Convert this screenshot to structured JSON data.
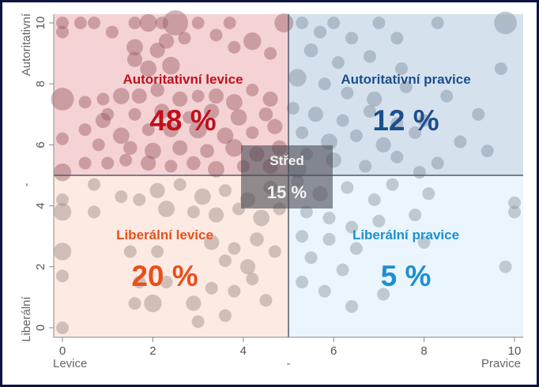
{
  "chart_data": {
    "type": "scatter",
    "subtype": "bubble-quadrant",
    "xlim": [
      0,
      10
    ],
    "ylim": [
      0,
      10
    ],
    "xticks": [
      0,
      2,
      4,
      6,
      8,
      10
    ],
    "yticks": [
      0,
      2,
      4,
      6,
      8,
      10
    ],
    "xlabel_left": "Levice",
    "xlabel_center": "-",
    "xlabel_right": "Pravice",
    "ylabel_bottom": "Liberální",
    "ylabel_center": "-",
    "ylabel_top": "Autoritativní",
    "divider": {
      "x": 5,
      "y": 5
    },
    "quadrants": [
      {
        "name": "Autoritativní levice",
        "percent": "48 %",
        "color": "#c0101a",
        "bg": "#f5d3d5"
      },
      {
        "name": "Autoritativní pravice",
        "percent": "12 %",
        "color": "#1c4e8e",
        "bg": "#d5e2ee"
      },
      {
        "name": "Liberální levice",
        "percent": "20 %",
        "color": "#e8501a",
        "bg": "#fdeae3"
      },
      {
        "name": "Liberální pravice",
        "percent": "5 %",
        "color": "#1d8fd0",
        "bg": "#eaf5fd"
      }
    ],
    "center": {
      "name": "Střed",
      "percent": "15 %"
    },
    "points": [
      [
        0,
        10,
        1
      ],
      [
        0,
        9.7,
        1
      ],
      [
        0.4,
        10,
        1
      ],
      [
        0.7,
        10,
        1
      ],
      [
        1.1,
        9.7,
        1
      ],
      [
        1.6,
        10,
        1
      ],
      [
        1.9,
        10,
        1.4
      ],
      [
        2.2,
        10,
        1
      ],
      [
        1.6,
        9.2,
        1.3
      ],
      [
        2.1,
        9.1,
        1.2
      ],
      [
        2.5,
        10,
        2
      ],
      [
        2.3,
        9.4,
        1.2
      ],
      [
        1.6,
        8.8,
        1.2
      ],
      [
        1.9,
        8.5,
        1.3
      ],
      [
        2.4,
        8.6,
        1.4
      ],
      [
        3.0,
        10,
        1
      ],
      [
        3.4,
        9.6,
        1
      ],
      [
        3.7,
        10,
        1
      ],
      [
        2.7,
        9.5,
        1
      ],
      [
        3.8,
        9.2,
        1
      ],
      [
        4.2,
        9.4,
        1.4
      ],
      [
        4.6,
        9.0,
        1
      ],
      [
        4.9,
        10,
        1.5
      ],
      [
        0,
        7.5,
        1.8
      ],
      [
        0.5,
        7.4,
        1
      ],
      [
        0.9,
        7.5,
        1
      ],
      [
        1.3,
        7.6,
        1.3
      ],
      [
        1.7,
        7.6,
        1.2
      ],
      [
        2.1,
        7.8,
        1.1
      ],
      [
        2.6,
        7.5,
        1.2
      ],
      [
        3.0,
        7.6,
        1
      ],
      [
        3.4,
        7.6,
        1.2
      ],
      [
        3.8,
        7.4,
        1.3
      ],
      [
        4.2,
        7.8,
        1
      ],
      [
        4.6,
        7.5,
        1.2
      ],
      [
        1.0,
        7.0,
        1
      ],
      [
        1.6,
        7.0,
        1
      ],
      [
        2.2,
        7.1,
        1.2
      ],
      [
        2.8,
        6.9,
        1
      ],
      [
        3.3,
        7.1,
        1.2
      ],
      [
        3.9,
        6.9,
        1.3
      ],
      [
        4.5,
        7.0,
        1.1
      ],
      [
        0.9,
        6.8,
        1.2
      ],
      [
        0.5,
        6.5,
        1
      ],
      [
        1.3,
        6.3,
        1.3
      ],
      [
        1.9,
        6.5,
        1
      ],
      [
        2.4,
        6.5,
        1.2
      ],
      [
        3.0,
        6.5,
        1.4
      ],
      [
        3.6,
        6.3,
        1.3
      ],
      [
        4.2,
        6.4,
        1
      ],
      [
        4.7,
        6.6,
        1.2
      ],
      [
        0,
        6.2,
        1
      ],
      [
        0.8,
        6.0,
        1
      ],
      [
        1.5,
        5.9,
        1.1
      ],
      [
        2.0,
        5.8,
        1.3
      ],
      [
        2.6,
        5.9,
        1.2
      ],
      [
        3.2,
        5.8,
        1.1
      ],
      [
        3.8,
        5.9,
        1.4
      ],
      [
        4.3,
        5.7,
        1.2
      ],
      [
        4.8,
        5.9,
        1.2
      ],
      [
        1.0,
        5.4,
        1
      ],
      [
        1.4,
        5.5,
        1
      ],
      [
        1.9,
        5.4,
        1.2
      ],
      [
        2.4,
        5.3,
        1
      ],
      [
        2.9,
        5.4,
        1.1
      ],
      [
        3.4,
        5.2,
        1.3
      ],
      [
        4.0,
        5.3,
        1
      ],
      [
        4.6,
        5.3,
        1.2
      ],
      [
        0,
        5.1,
        1.4
      ],
      [
        0.5,
        5.4,
        1
      ],
      [
        5.3,
        10,
        1
      ],
      [
        5.7,
        9.7,
        1
      ],
      [
        6.0,
        10,
        1
      ],
      [
        6.4,
        9.5,
        1
      ],
      [
        7.0,
        10,
        1
      ],
      [
        7.4,
        9.5,
        1
      ],
      [
        8.3,
        10,
        1
      ],
      [
        9.8,
        10,
        1.8
      ],
      [
        5.5,
        9.1,
        1.1
      ],
      [
        6.1,
        8.7,
        1
      ],
      [
        6.8,
        8.9,
        1
      ],
      [
        7.5,
        8.5,
        1
      ],
      [
        9.7,
        8.5,
        1
      ],
      [
        5.2,
        8.2,
        1.4
      ],
      [
        5.8,
        8.0,
        1
      ],
      [
        6.3,
        7.7,
        1
      ],
      [
        6.9,
        7.5,
        1.2
      ],
      [
        7.6,
        7.9,
        1
      ],
      [
        8.5,
        7.6,
        1
      ],
      [
        5.1,
        7.2,
        1
      ],
      [
        5.6,
        7.0,
        1.2
      ],
      [
        6.2,
        6.8,
        1
      ],
      [
        6.8,
        7.1,
        1
      ],
      [
        7.4,
        6.7,
        1
      ],
      [
        8.0,
        6.8,
        1
      ],
      [
        9.2,
        7.0,
        1
      ],
      [
        5.3,
        6.4,
        1
      ],
      [
        5.9,
        6.1,
        1.3
      ],
      [
        6.5,
        6.3,
        1
      ],
      [
        7.1,
        6.0,
        1.2
      ],
      [
        7.8,
        6.4,
        1
      ],
      [
        8.8,
        6.1,
        1
      ],
      [
        5.4,
        5.7,
        1
      ],
      [
        6.0,
        5.5,
        1.2
      ],
      [
        6.7,
        5.3,
        1
      ],
      [
        7.4,
        5.6,
        1
      ],
      [
        8.3,
        5.4,
        1
      ],
      [
        9.4,
        5.8,
        1
      ],
      [
        5.2,
        5.2,
        1.4
      ],
      [
        7.9,
        5.1,
        1
      ],
      [
        0,
        4.2,
        1
      ],
      [
        0,
        3.8,
        1.4
      ],
      [
        0.7,
        3.8,
        1
      ],
      [
        0.7,
        4.7,
        1
      ],
      [
        1.3,
        4.3,
        1
      ],
      [
        1.7,
        4.2,
        1
      ],
      [
        2.1,
        4.5,
        1.2
      ],
      [
        2.6,
        4.7,
        1
      ],
      [
        3.1,
        4.3,
        1.3
      ],
      [
        3.6,
        4.5,
        1
      ],
      [
        4.1,
        4.2,
        1.2
      ],
      [
        4.6,
        4.6,
        1.1
      ],
      [
        2.3,
        3.9,
        1.3
      ],
      [
        2.9,
        3.8,
        1
      ],
      [
        3.4,
        3.7,
        1.2
      ],
      [
        3.9,
        3.9,
        1
      ],
      [
        4.4,
        3.6,
        1.3
      ],
      [
        4.8,
        3.9,
        1
      ],
      [
        0,
        2.5,
        1.4
      ],
      [
        1.5,
        2.5,
        1
      ],
      [
        2.1,
        2.5,
        1
      ],
      [
        3.3,
        2.8,
        1.2
      ],
      [
        3.8,
        2.6,
        1
      ],
      [
        4.3,
        2.9,
        1.1
      ],
      [
        4.7,
        2.5,
        1
      ],
      [
        3.6,
        2.2,
        1
      ],
      [
        4.1,
        2.0,
        1.2
      ],
      [
        0,
        1.7,
        1
      ],
      [
        1.7,
        1.5,
        1
      ],
      [
        2.3,
        1.5,
        1
      ],
      [
        1.6,
        0.8,
        1
      ],
      [
        2.0,
        0.8,
        1.4
      ],
      [
        2.9,
        0.8,
        1.2
      ],
      [
        3.3,
        1.3,
        1
      ],
      [
        3.8,
        1.2,
        1
      ],
      [
        4.2,
        1.6,
        1
      ],
      [
        3.6,
        0.4,
        1
      ],
      [
        3.0,
        0.2,
        1
      ],
      [
        0,
        0,
        1
      ],
      [
        4.5,
        0.9,
        1
      ],
      [
        5.2,
        4.8,
        1
      ],
      [
        5.7,
        4.4,
        1.2
      ],
      [
        6.3,
        4.6,
        1
      ],
      [
        6.9,
        4.2,
        1
      ],
      [
        7.3,
        4.7,
        1
      ],
      [
        8.1,
        4.4,
        1
      ],
      [
        10,
        4.1,
        1
      ],
      [
        10,
        3.8,
        1
      ],
      [
        5.4,
        3.8,
        1
      ],
      [
        5.9,
        3.6,
        1
      ],
      [
        6.4,
        3.3,
        1
      ],
      [
        7.0,
        3.5,
        1
      ],
      [
        7.8,
        3.7,
        1
      ],
      [
        5.3,
        3.0,
        1
      ],
      [
        5.9,
        2.9,
        1
      ],
      [
        6.5,
        2.6,
        1
      ],
      [
        8.0,
        2.8,
        1
      ],
      [
        5.5,
        2.3,
        1
      ],
      [
        6.2,
        1.9,
        1
      ],
      [
        9.8,
        2.0,
        1
      ],
      [
        5.3,
        1.5,
        1
      ],
      [
        5.8,
        1.2,
        1
      ],
      [
        6.4,
        0.7,
        1
      ],
      [
        7.1,
        1.1,
        1
      ]
    ]
  }
}
